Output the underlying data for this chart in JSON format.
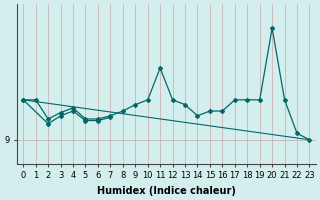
{
  "xlabel": "Humidex (Indice chaleur)",
  "background_color": "#d4eeee",
  "vgrid_color": "#c8a8a8",
  "hgrid_color": "#c8a8a8",
  "line_color": "#006868",
  "x_values": [
    0,
    1,
    2,
    3,
    4,
    5,
    6,
    7,
    8,
    9,
    10,
    11,
    12,
    13,
    14,
    15,
    16,
    17,
    18,
    19,
    20,
    21,
    22,
    23
  ],
  "series1_x": [
    0,
    1,
    2,
    3,
    4,
    5,
    6,
    7,
    8,
    9,
    10,
    11,
    12,
    13,
    14,
    15,
    16,
    17,
    18,
    19,
    20,
    21,
    22,
    23
  ],
  "series1_y": [
    11.5,
    11.5,
    10.3,
    10.7,
    11.0,
    10.3,
    10.3,
    10.5,
    10.8,
    11.2,
    11.5,
    13.5,
    11.5,
    11.2,
    10.5,
    10.8,
    10.8,
    11.5,
    11.5,
    11.5,
    16.0,
    11.5,
    9.4,
    9.0
  ],
  "series2_x": [
    0,
    2,
    3,
    4,
    5,
    6,
    7
  ],
  "series2_y": [
    11.5,
    10.0,
    10.5,
    10.8,
    10.2,
    10.2,
    10.4
  ],
  "trend_x": [
    0,
    23
  ],
  "trend_y": [
    11.5,
    9.0
  ],
  "y_tick_label": "9",
  "y_tick_value": 9.0,
  "ylim_min": 7.5,
  "ylim_max": 17.5,
  "xlim_min": -0.5,
  "xlim_max": 23.5,
  "axis_fontsize": 7,
  "tick_fontsize": 6
}
